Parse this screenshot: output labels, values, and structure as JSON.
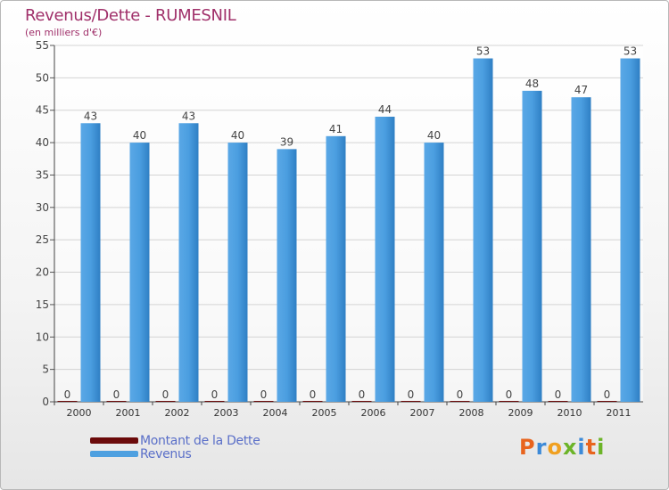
{
  "chart_data": {
    "type": "bar",
    "title": "Revenus/Dette - RUMESNIL",
    "subtitle": "(en milliers d'€)",
    "categories": [
      "2000",
      "2001",
      "2002",
      "2003",
      "2004",
      "2005",
      "2006",
      "2007",
      "2008",
      "2009",
      "2010",
      "2011"
    ],
    "series": [
      {
        "name": "Montant de la Dette",
        "color": "#6b0a0a",
        "values": [
          0,
          0,
          0,
          0,
          0,
          0,
          0,
          0,
          0,
          0,
          0,
          0
        ]
      },
      {
        "name": "Revenus",
        "color": "#4ea0e0",
        "values": [
          43,
          40,
          43,
          40,
          39,
          41,
          44,
          40,
          53,
          48,
          47,
          53
        ]
      }
    ],
    "yticks": [
      0,
      5,
      10,
      15,
      20,
      25,
      30,
      35,
      40,
      45,
      50,
      55
    ],
    "ylim": [
      0,
      55
    ],
    "grid": true,
    "legend": "bottom-left"
  },
  "brand": {
    "letters": [
      "P",
      "r",
      "o",
      "x",
      "i",
      "t",
      "i"
    ],
    "colors": [
      "#e8641e",
      "#3c8ad8",
      "#f0a020",
      "#6cb428",
      "#3c8ad8",
      "#e8641e",
      "#6cb428"
    ]
  }
}
